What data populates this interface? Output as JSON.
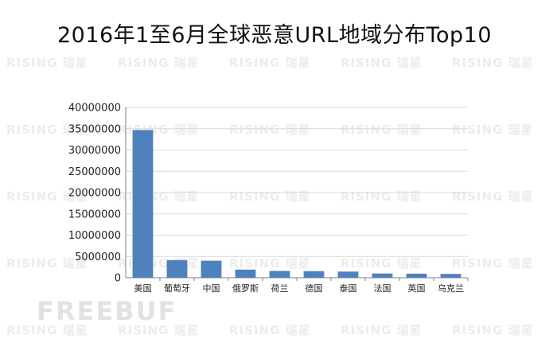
{
  "watermark": {
    "brand_text": "RISING 瑞星",
    "footer_text": "FREEBUF"
  },
  "chart_data": {
    "type": "bar",
    "title": "2016年1至6月全球恶意URL地域分布Top10",
    "xlabel": "",
    "ylabel": "",
    "categories": [
      "美国",
      "葡萄牙",
      "中国",
      "俄罗斯",
      "荷兰",
      "德国",
      "泰国",
      "法国",
      "英国",
      "乌克兰"
    ],
    "values": [
      34700000,
      4150000,
      4000000,
      1900000,
      1600000,
      1550000,
      1450000,
      1000000,
      950000,
      900000
    ],
    "ylim": [
      0,
      40000000
    ],
    "yticks": [
      "0",
      "5000000",
      "10000000",
      "15000000",
      "20000000",
      "25000000",
      "30000000",
      "35000000",
      "40000000"
    ],
    "bar_color": "#4f81bd",
    "grid": true,
    "legend": "none"
  }
}
